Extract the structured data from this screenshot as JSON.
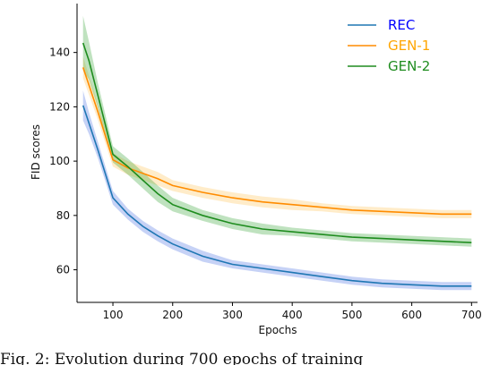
{
  "chart_data": {
    "type": "line",
    "xlabel": "Epochs",
    "ylabel": "FID scores",
    "xlim": [
      40,
      710
    ],
    "ylim": [
      48,
      158
    ],
    "xticks": [
      100,
      200,
      300,
      400,
      500,
      600,
      700
    ],
    "yticks": [
      60,
      80,
      100,
      120,
      140
    ],
    "grid": false,
    "legend_position": "top-right",
    "series": [
      {
        "name": "REC",
        "color": "#1f77b4",
        "legend_text_color": "#0000ff",
        "band_color": "#4169e1",
        "x": [
          50,
          60,
          75,
          100,
          125,
          150,
          175,
          200,
          250,
          300,
          350,
          400,
          450,
          500,
          550,
          600,
          650,
          700
        ],
        "y": [
          120.5,
          114,
          104,
          86.5,
          80.5,
          76,
          72.5,
          69.5,
          65,
          62,
          60.5,
          59,
          57.5,
          56,
          55,
          54.5,
          54,
          54
        ],
        "band": [
          5.5,
          4,
          3,
          2.5,
          2,
          2,
          2,
          2,
          2,
          1.5,
          1.5,
          1.5,
          1.5,
          1.5,
          1.5,
          1.5,
          1.5,
          1.5
        ]
      },
      {
        "name": "GEN-1",
        "color": "#ff8c00",
        "legend_text_color": "#ffa500",
        "band_color": "#ffc04d",
        "x": [
          50,
          60,
          75,
          100,
          125,
          150,
          175,
          200,
          250,
          300,
          350,
          400,
          450,
          500,
          550,
          600,
          650,
          700
        ],
        "y": [
          134.5,
          128,
          118,
          100.5,
          97.5,
          95.5,
          93.5,
          91,
          88.5,
          86.5,
          85,
          84,
          83,
          82,
          81.5,
          81,
          80.5,
          80.5
        ],
        "band": [
          4,
          3.5,
          3,
          2.5,
          2.5,
          2.5,
          2.5,
          2,
          2,
          2,
          2,
          2,
          1.5,
          1.5,
          1.5,
          1.5,
          1.5,
          1.5
        ]
      },
      {
        "name": "GEN-2",
        "color": "#1e8c1e",
        "legend_text_color": "#1e8c1e",
        "band_color": "#2ca02c",
        "x": [
          50,
          60,
          75,
          100,
          125,
          150,
          175,
          200,
          250,
          300,
          350,
          400,
          450,
          500,
          550,
          600,
          650,
          700
        ],
        "y": [
          143.5,
          137,
          124,
          102.5,
          98,
          93,
          88,
          84,
          80,
          77,
          75,
          74,
          73,
          72,
          71.5,
          71,
          70.5,
          70
        ],
        "band": [
          10,
          7,
          4.5,
          3,
          3,
          3,
          3,
          2.5,
          2,
          2,
          2,
          1.5,
          1.5,
          1.5,
          1.5,
          1.5,
          1.5,
          1.5
        ]
      }
    ]
  },
  "caption": "Fig. 2:  Evolution during 700 epochs of training"
}
